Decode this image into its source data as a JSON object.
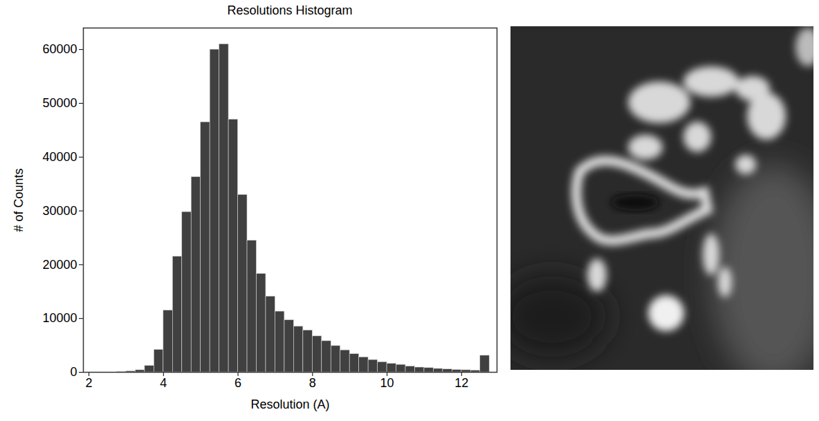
{
  "chart_data": {
    "type": "histogram",
    "title": "Resolutions Histogram",
    "x_label": "Resolution (A)",
    "y_label": "# of Counts",
    "bins": [
      2.75,
      3.0,
      3.25,
      3.5,
      3.75,
      4.0,
      4.25,
      4.5,
      4.75,
      5.0,
      5.25,
      5.5,
      5.75,
      6.0,
      6.25,
      6.5,
      6.75,
      7.0,
      7.25,
      7.5,
      7.75,
      8.0,
      8.25,
      8.5,
      8.75,
      9.0,
      9.25,
      9.5,
      9.75,
      10.0,
      10.25,
      10.5,
      10.75,
      11.0,
      11.25,
      11.5,
      11.75,
      12.0,
      12.25,
      12.5,
      12.75
    ],
    "values": [
      100,
      200,
      400,
      1200,
      4200,
      11500,
      21500,
      29800,
      36300,
      46500,
      60000,
      61000,
      47000,
      33000,
      24500,
      18300,
      14100,
      11300,
      9700,
      8500,
      7800,
      6700,
      5800,
      4900,
      4100,
      3400,
      2800,
      2300,
      1900,
      1600,
      1400,
      1100,
      900,
      800,
      650,
      550,
      450,
      400,
      350,
      3100
    ],
    "color": "#404040",
    "xlim": [
      1.85,
      12.95
    ],
    "xticks": [
      2,
      4,
      6,
      8,
      10,
      12
    ],
    "ylim": [
      0,
      64000
    ],
    "yticks": [
      0,
      10000,
      20000,
      30000,
      40000,
      50000,
      60000
    ],
    "grid": false
  }
}
